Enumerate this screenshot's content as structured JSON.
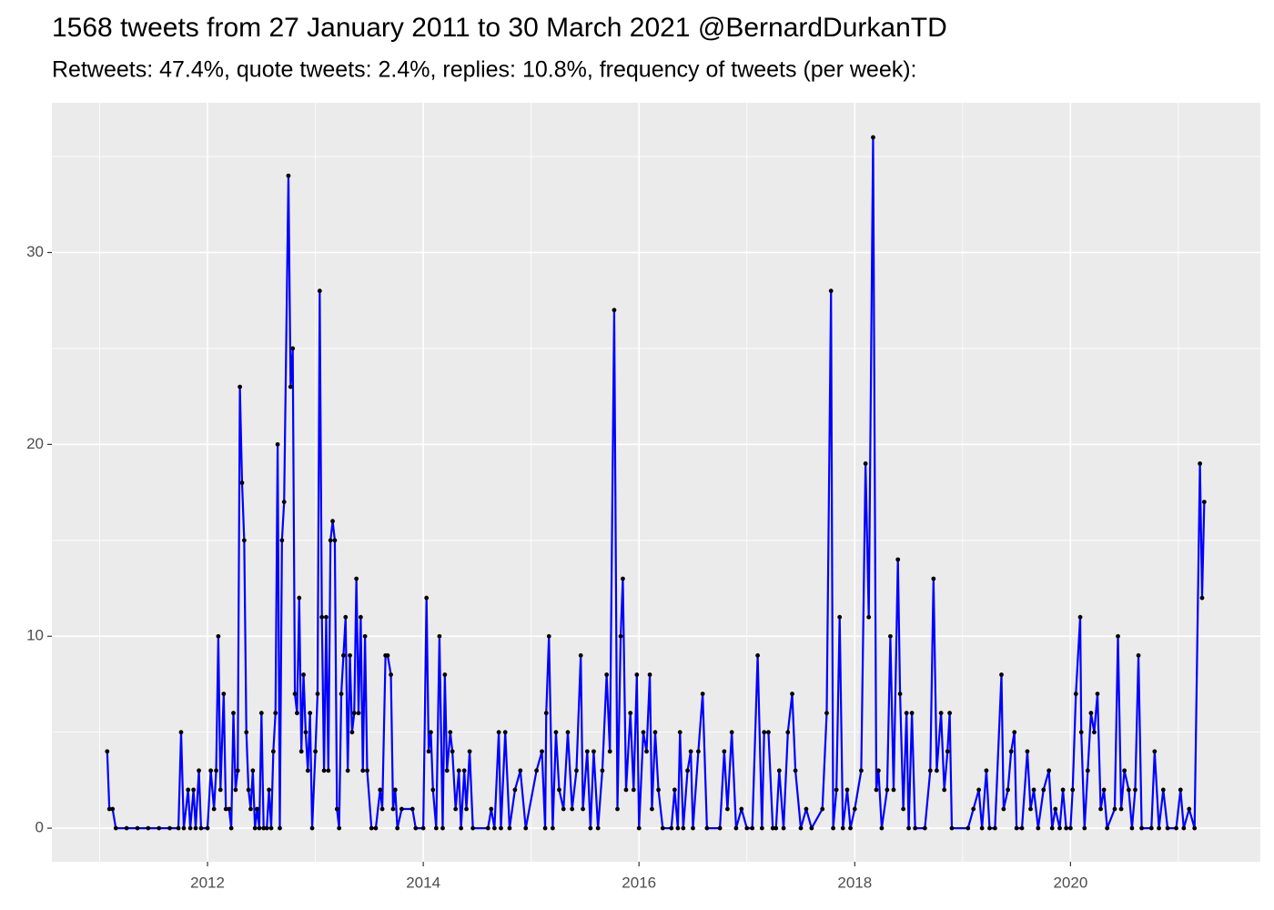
{
  "chart_data": {
    "type": "line",
    "title": "1568 tweets from 27 January 2011 to 30 March 2021 @BernardDurkanTD",
    "subtitle": "Retweets: 47.4%, quote tweets: 2.4%, replies: 10.8%, frequency of tweets (per week):",
    "x": [
      2011.07,
      2011.09,
      2011.12,
      2011.15,
      2011.25,
      2011.35,
      2011.45,
      2011.55,
      2011.65,
      2011.73,
      2011.755,
      2011.78,
      2011.82,
      2011.84,
      2011.87,
      2011.89,
      2011.92,
      2011.94,
      2012.0,
      2012.03,
      2012.06,
      2012.08,
      2012.1,
      2012.12,
      2012.15,
      2012.17,
      2012.2,
      2012.22,
      2012.24,
      2012.26,
      2012.28,
      2012.3,
      2012.32,
      2012.34,
      2012.36,
      2012.38,
      2012.4,
      2012.42,
      2012.44,
      2012.46,
      2012.48,
      2012.5,
      2012.52,
      2012.55,
      2012.57,
      2012.59,
      2012.61,
      2012.63,
      2012.65,
      2012.67,
      2012.69,
      2012.71,
      2012.75,
      2012.77,
      2012.79,
      2012.81,
      2012.83,
      2012.85,
      2012.87,
      2012.89,
      2012.91,
      2012.93,
      2012.95,
      2012.97,
      2013.0,
      2013.02,
      2013.04,
      2013.06,
      2013.08,
      2013.1,
      2013.12,
      2013.14,
      2013.16,
      2013.18,
      2013.2,
      2013.22,
      2013.24,
      2013.26,
      2013.28,
      2013.3,
      2013.32,
      2013.34,
      2013.36,
      2013.38,
      2013.4,
      2013.42,
      2013.44,
      2013.46,
      2013.48,
      2013.52,
      2013.56,
      2013.6,
      2013.62,
      2013.65,
      2013.67,
      2013.7,
      2013.72,
      2013.74,
      2013.76,
      2013.8,
      2013.9,
      2013.93,
      2014.0,
      2014.03,
      2014.05,
      2014.07,
      2014.09,
      2014.12,
      2014.15,
      2014.18,
      2014.2,
      2014.22,
      2014.25,
      2014.27,
      2014.3,
      2014.33,
      2014.35,
      2014.38,
      2014.4,
      2014.43,
      2014.46,
      2014.6,
      2014.63,
      2014.66,
      2014.7,
      2014.72,
      2014.76,
      2014.8,
      2014.85,
      2014.9,
      2014.95,
      2015.05,
      2015.1,
      2015.13,
      2015.14,
      2015.165,
      2015.2,
      2015.23,
      2015.26,
      2015.3,
      2015.34,
      2015.38,
      2015.42,
      2015.46,
      2015.48,
      2015.52,
      2015.55,
      2015.58,
      2015.62,
      2015.66,
      2015.7,
      2015.73,
      2015.77,
      2015.8,
      2015.83,
      2015.85,
      2015.88,
      2015.92,
      2015.95,
      2015.98,
      2016.0,
      2016.04,
      2016.07,
      2016.1,
      2016.12,
      2016.15,
      2016.18,
      2016.22,
      2016.3,
      2016.33,
      2016.36,
      2016.38,
      2016.41,
      2016.45,
      2016.48,
      2016.5,
      2016.55,
      2016.59,
      2016.63,
      2016.75,
      2016.79,
      2016.82,
      2016.86,
      2016.9,
      2016.95,
      2017.0,
      2017.05,
      2017.1,
      2017.14,
      2017.16,
      2017.2,
      2017.24,
      2017.27,
      2017.3,
      2017.34,
      2017.38,
      2017.42,
      2017.45,
      2017.5,
      2017.55,
      2017.6,
      2017.7,
      2017.74,
      2017.78,
      2017.8,
      2017.83,
      2017.86,
      2017.89,
      2017.93,
      2017.96,
      2018.0,
      2018.06,
      2018.1,
      2018.13,
      2018.17,
      2018.2,
      2018.22,
      2018.25,
      2018.3,
      2018.33,
      2018.36,
      2018.4,
      2018.42,
      2018.45,
      2018.48,
      2018.5,
      2018.53,
      2018.56,
      2018.65,
      2018.7,
      2018.73,
      2018.76,
      2018.8,
      2018.83,
      2018.86,
      2018.88,
      2018.9,
      2019.05,
      2019.1,
      2019.15,
      2019.18,
      2019.22,
      2019.25,
      2019.3,
      2019.36,
      2019.38,
      2019.42,
      2019.45,
      2019.48,
      2019.5,
      2019.55,
      2019.6,
      2019.63,
      2019.66,
      2019.7,
      2019.75,
      2019.8,
      2019.83,
      2019.86,
      2019.9,
      2019.93,
      2019.96,
      2020.0,
      2020.02,
      2020.05,
      2020.09,
      2020.1,
      2020.13,
      2020.16,
      2020.19,
      2020.22,
      2020.25,
      2020.28,
      2020.31,
      2020.34,
      2020.41,
      2020.44,
      2020.47,
      2020.5,
      2020.54,
      2020.57,
      2020.6,
      2020.63,
      2020.66,
      2020.75,
      2020.78,
      2020.82,
      2020.86,
      2020.9,
      2020.98,
      2021.02,
      2021.05,
      2021.1,
      2021.15,
      2021.2,
      2021.22,
      2021.24
    ],
    "values": [
      4,
      1,
      1,
      0,
      0,
      0,
      0,
      0,
      0,
      0,
      5,
      0,
      2,
      0,
      2,
      0,
      3,
      0,
      0,
      3,
      1,
      3,
      10,
      2,
      7,
      1,
      1,
      0,
      6,
      2,
      3,
      23,
      18,
      15,
      5,
      2,
      1,
      3,
      0,
      1,
      0,
      6,
      0,
      0,
      2,
      0,
      4,
      6,
      20,
      0,
      15,
      17,
      34,
      23,
      25,
      7,
      6,
      12,
      4,
      8,
      5,
      3,
      6,
      0,
      4,
      7,
      28,
      11,
      3,
      11,
      3,
      15,
      16,
      15,
      1,
      0,
      7,
      9,
      11,
      3,
      9,
      5,
      6,
      13,
      6,
      11,
      3,
      10,
      3,
      0,
      0,
      2,
      1,
      9,
      9,
      8,
      1,
      2,
      0,
      1,
      1,
      0,
      0,
      12,
      4,
      5,
      2,
      0,
      10,
      0,
      8,
      3,
      5,
      4,
      1,
      3,
      0,
      3,
      1,
      4,
      0,
      0,
      1,
      0,
      5,
      0,
      5,
      0,
      2,
      3,
      0,
      3,
      4,
      0,
      6,
      10,
      0,
      5,
      2,
      1,
      5,
      1,
      3,
      9,
      1,
      4,
      0,
      4,
      0,
      3,
      8,
      4,
      27,
      1,
      10,
      13,
      2,
      6,
      2,
      8,
      0,
      5,
      4,
      8,
      1,
      5,
      2,
      0,
      0,
      2,
      0,
      5,
      0,
      3,
      4,
      0,
      4,
      7,
      0,
      0,
      4,
      1,
      5,
      0,
      1,
      0,
      0,
      9,
      0,
      5,
      5,
      0,
      0,
      3,
      0,
      5,
      7,
      3,
      0,
      1,
      0,
      1,
      6,
      28,
      0,
      2,
      11,
      0,
      2,
      0,
      1,
      3,
      19,
      11,
      36,
      2,
      3,
      0,
      2,
      10,
      2,
      14,
      7,
      1,
      6,
      0,
      6,
      0,
      0,
      3,
      13,
      3,
      6,
      2,
      4,
      6,
      0,
      0,
      1,
      2,
      0,
      3,
      0,
      0,
      8,
      1,
      2,
      4,
      5,
      0,
      0,
      4,
      1,
      2,
      0,
      2,
      3,
      0,
      1,
      0,
      2,
      0,
      0,
      2,
      7,
      11,
      5,
      0,
      3,
      6,
      5,
      7,
      1,
      2,
      0,
      1,
      10,
      1,
      3,
      2,
      0,
      2,
      9,
      0,
      0,
      4,
      0,
      2,
      0,
      0,
      2,
      0,
      1,
      0,
      19,
      12,
      17
    ],
    "color": "#0000ff",
    "marker_color": "#000000",
    "xlim": [
      2010.557,
      2021.76
    ],
    "xticks": [
      2012,
      2014,
      2016,
      2018,
      2020
    ],
    "xminor": [
      2011,
      2013,
      2015,
      2017,
      2019,
      2021
    ],
    "ylim": [
      -1.75,
      37.8
    ],
    "yticks": [
      0,
      10,
      20,
      30
    ],
    "yminor": [
      5,
      15,
      25,
      35
    ],
    "grid": true
  }
}
